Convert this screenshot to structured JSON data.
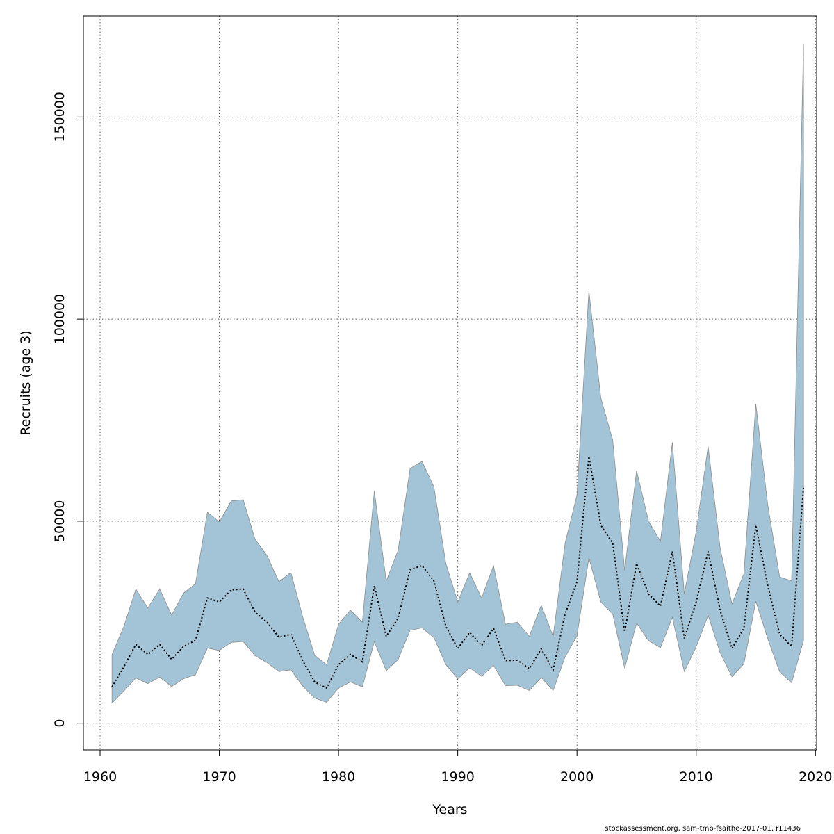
{
  "chart_data": {
    "type": "area",
    "title": "",
    "xlabel": "Years",
    "ylabel": "Recruits (age 3)",
    "xlim": [
      1958.6,
      2020.1
    ],
    "ylim": [
      -6600,
      175000
    ],
    "x_ticks": [
      1960,
      1970,
      1980,
      1990,
      2000,
      2010,
      2020
    ],
    "y_ticks": [
      0,
      50000,
      100000,
      150000
    ],
    "x_tick_labels": [
      "1960",
      "1970",
      "1980",
      "1990",
      "2000",
      "2010",
      "2020"
    ],
    "y_tick_labels": [
      "0",
      "50000",
      "100000",
      "150000"
    ],
    "grid": true,
    "colors": {
      "band": "#a3c4d6",
      "band_edge": "#8c8c8c",
      "line": "#000000",
      "grid": "#555555",
      "frame": "#000000"
    },
    "x": [
      1961,
      1962,
      1963,
      1964,
      1965,
      1966,
      1967,
      1968,
      1969,
      1970,
      1971,
      1972,
      1973,
      1974,
      1975,
      1976,
      1977,
      1978,
      1979,
      1980,
      1981,
      1982,
      1983,
      1984,
      1985,
      1986,
      1987,
      1988,
      1989,
      1990,
      1991,
      1992,
      1993,
      1994,
      1995,
      1996,
      1997,
      1998,
      1999,
      2000,
      2001,
      2002,
      2003,
      2004,
      2005,
      2006,
      2007,
      2008,
      2009,
      2010,
      2011,
      2012,
      2013,
      2014,
      2015,
      2016,
      2017,
      2018,
      2019
    ],
    "series": [
      {
        "name": "Estimate",
        "style": "dotted",
        "values": [
          9000,
          14000,
          19500,
          17000,
          19500,
          15800,
          19000,
          20500,
          31000,
          30000,
          33000,
          33200,
          27500,
          25000,
          21300,
          22000,
          15500,
          10200,
          8700,
          14500,
          17000,
          15200,
          34000,
          21500,
          26000,
          38000,
          39000,
          35200,
          24000,
          18500,
          22500,
          19200,
          23500,
          15500,
          15600,
          13500,
          18400,
          13200,
          27000,
          35000,
          66000,
          49000,
          44500,
          22600,
          39500,
          32000,
          29000,
          42500,
          21000,
          30000,
          42500,
          28000,
          18500,
          23500,
          49000,
          34000,
          22000,
          19000,
          58500
        ]
      },
      {
        "name": "Upper",
        "style": "band",
        "values": [
          17000,
          24000,
          33200,
          28500,
          33200,
          26800,
          32200,
          34500,
          52200,
          49800,
          55000,
          55300,
          45500,
          41500,
          35000,
          37300,
          26300,
          16800,
          14500,
          24500,
          28000,
          25000,
          57500,
          35200,
          42800,
          63000,
          64800,
          58500,
          39500,
          30000,
          37200,
          31000,
          39000,
          24500,
          25000,
          21500,
          29200,
          21500,
          44500,
          56500,
          107000,
          80500,
          70000,
          37800,
          62500,
          50000,
          45000,
          69500,
          32000,
          47500,
          68500,
          43500,
          29500,
          37000,
          79000,
          54000,
          36200,
          35200,
          168000
        ]
      },
      {
        "name": "Lower",
        "style": "band",
        "values": [
          5000,
          8000,
          11200,
          9800,
          11400,
          9100,
          11000,
          12000,
          18600,
          18000,
          20000,
          20200,
          16700,
          15000,
          12800,
          13200,
          9200,
          6200,
          5200,
          8700,
          10200,
          9000,
          20200,
          13000,
          15800,
          23000,
          23600,
          21200,
          14500,
          11000,
          13700,
          11600,
          14300,
          9300,
          9400,
          8100,
          11300,
          8100,
          16400,
          21600,
          41000,
          30000,
          27000,
          13600,
          24800,
          20400,
          18700,
          26200,
          12800,
          18900,
          26700,
          17500,
          11500,
          14700,
          30200,
          20900,
          12700,
          10000,
          20500
        ]
      }
    ]
  },
  "footer": {
    "note": "stockassessment.org, sam-tmb-fsaithe-2017-01, r11436"
  }
}
